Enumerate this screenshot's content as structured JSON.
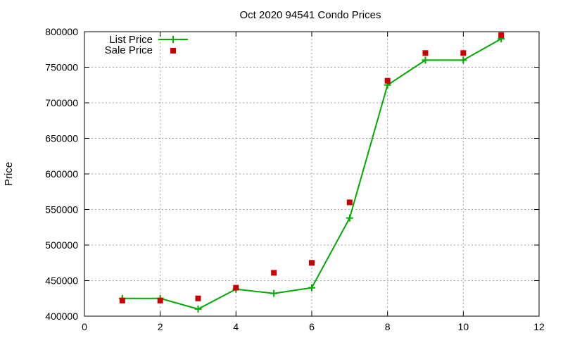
{
  "chart_data": {
    "type": "line",
    "title": "Oct 2020 94541 Condo Prices",
    "xlabel": "",
    "ylabel": "Price",
    "xlim": [
      0,
      12
    ],
    "ylim": [
      400000,
      800000
    ],
    "x_ticks": [
      "0",
      "2",
      "4",
      "6",
      "8",
      "10",
      "12"
    ],
    "y_ticks": [
      "400000",
      "450000",
      "500000",
      "550000",
      "600000",
      "650000",
      "700000",
      "750000",
      "800000"
    ],
    "grid": true,
    "legend_position": "top-left",
    "x": [
      1,
      2,
      3,
      4,
      5,
      6,
      7,
      8,
      9,
      10,
      11
    ],
    "series": [
      {
        "name": "List Price",
        "type": "line",
        "marker": "plus",
        "color": "#00aa00",
        "values": [
          425000,
          425000,
          410000,
          438000,
          432000,
          440000,
          538000,
          725000,
          760000,
          760000,
          790000
        ]
      },
      {
        "name": "Sale Price",
        "type": "scatter",
        "marker": "square",
        "color": "#cc0000",
        "values": [
          422000,
          422000,
          425000,
          440000,
          461000,
          475000,
          560000,
          731000,
          770000,
          770000,
          795000
        ]
      }
    ]
  }
}
